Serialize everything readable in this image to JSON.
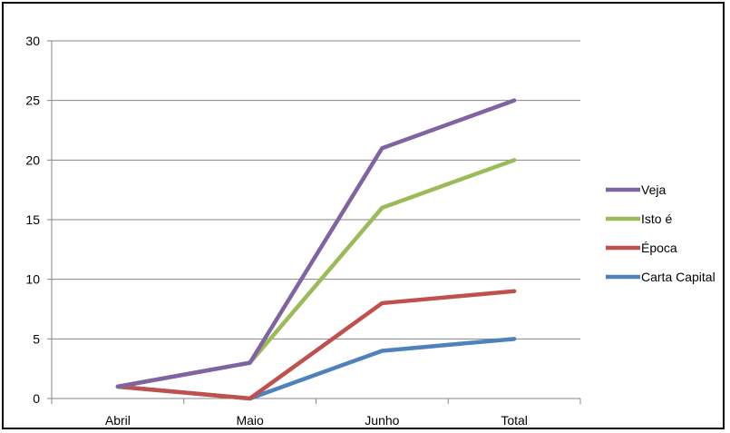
{
  "chart_data": {
    "type": "line",
    "title": "",
    "xlabel": "",
    "ylabel": "",
    "categories": [
      "Abril",
      "Maio",
      "Junho",
      "Total"
    ],
    "ylim": [
      0,
      30
    ],
    "yticks": [
      0,
      5,
      10,
      15,
      20,
      25,
      30
    ],
    "grid": true,
    "legend_position": "right",
    "series": [
      {
        "name": "Veja",
        "color": "#8064A2",
        "values": [
          1,
          3,
          21,
          25
        ]
      },
      {
        "name": "Isto é",
        "color": "#9BBB59",
        "values": [
          1,
          3,
          16,
          20
        ]
      },
      {
        "name": "Época",
        "color": "#C0504D",
        "values": [
          1,
          0,
          8,
          9
        ]
      },
      {
        "name": "Carta Capital",
        "color": "#4F81BD",
        "values": [
          1,
          0,
          4,
          5
        ]
      }
    ]
  }
}
